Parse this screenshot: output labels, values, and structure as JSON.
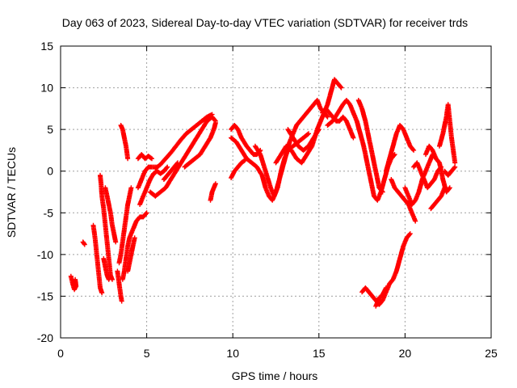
{
  "chart_data": {
    "type": "scatter",
    "title": "Day 063 of 2023, Sidereal Day-to-day VTEC variation (SDTVAR) for receiver trds",
    "xlabel": "GPS time / hours",
    "ylabel": "SDTVAR / TECUs",
    "xlim": [
      0,
      25
    ],
    "ylim": [
      -20,
      15
    ],
    "x_ticks": [
      0,
      5,
      10,
      15,
      20,
      25
    ],
    "y_ticks": [
      -20,
      -15,
      -10,
      -5,
      0,
      5,
      10,
      15
    ],
    "x_tick_labels": [
      "0",
      "5",
      "10",
      "15",
      "20",
      "25"
    ],
    "y_tick_labels": [
      "-20",
      "-15",
      "-10",
      "-5",
      "0",
      "5",
      "10",
      "15"
    ],
    "grid": true,
    "marker": "plus",
    "series_color": "#ff0000",
    "segments": [
      [
        [
          0.6,
          -12.6
        ],
        [
          0.7,
          -13.5
        ],
        [
          0.8,
          -14.2
        ],
        [
          0.9,
          -13.8
        ],
        [
          0.85,
          -13.0
        ]
      ],
      [
        [
          1.3,
          -8.5
        ],
        [
          1.4,
          -8.8
        ]
      ],
      [
        [
          1.9,
          -6.5
        ],
        [
          2.0,
          -8.0
        ],
        [
          2.1,
          -10.0
        ],
        [
          2.2,
          -12.0
        ],
        [
          2.3,
          -14.0
        ],
        [
          2.4,
          -14.6
        ]
      ],
      [
        [
          2.3,
          -0.5
        ],
        [
          2.35,
          -1.5
        ],
        [
          2.4,
          -3.0
        ],
        [
          2.5,
          -4.5
        ],
        [
          2.6,
          -6.5
        ],
        [
          2.7,
          -8.5
        ],
        [
          2.8,
          -10.5
        ],
        [
          2.9,
          -12.5
        ],
        [
          3.0,
          -13.0
        ]
      ],
      [
        [
          2.5,
          -10.5
        ],
        [
          2.6,
          -11.5
        ],
        [
          2.7,
          -12.5
        ],
        [
          2.8,
          -13.0
        ],
        [
          2.9,
          -12.5
        ]
      ],
      [
        [
          2.6,
          -2.0
        ],
        [
          2.7,
          -3.0
        ],
        [
          2.8,
          -4.0
        ],
        [
          2.9,
          -5.0
        ],
        [
          3.0,
          -6.5
        ],
        [
          3.1,
          -7.5
        ],
        [
          3.2,
          -8.5
        ]
      ],
      [
        [
          3.3,
          -12.0
        ],
        [
          3.4,
          -13.5
        ],
        [
          3.5,
          -15.0
        ],
        [
          3.55,
          -15.6
        ]
      ],
      [
        [
          3.4,
          -11.0
        ],
        [
          3.5,
          -10.0
        ],
        [
          3.6,
          -8.5
        ],
        [
          3.7,
          -7.0
        ],
        [
          3.8,
          -5.5
        ],
        [
          3.9,
          -4.0
        ],
        [
          4.0,
          -3.0
        ],
        [
          4.1,
          -2.0
        ]
      ],
      [
        [
          3.5,
          5.5
        ],
        [
          3.6,
          5.0
        ],
        [
          3.7,
          4.0
        ],
        [
          3.8,
          3.0
        ],
        [
          3.9,
          1.5
        ]
      ],
      [
        [
          3.6,
          -13.0
        ],
        [
          3.7,
          -12.0
        ],
        [
          3.8,
          -10.5
        ],
        [
          3.9,
          -9.0
        ],
        [
          4.0,
          -8.0
        ],
        [
          4.2,
          -7.0
        ],
        [
          4.4,
          -6.0
        ],
        [
          4.6,
          -5.5
        ],
        [
          4.8,
          -5.5
        ],
        [
          5.0,
          -5.0
        ]
      ],
      [
        [
          3.9,
          -12.0
        ],
        [
          4.0,
          -11.0
        ],
        [
          4.1,
          -10.0
        ],
        [
          4.2,
          -9.0
        ],
        [
          4.3,
          -8.0
        ]
      ],
      [
        [
          4.5,
          1.5
        ],
        [
          4.7,
          2.0
        ],
        [
          4.9,
          1.5
        ],
        [
          5.1,
          1.8
        ],
        [
          5.3,
          1.5
        ]
      ],
      [
        [
          4.6,
          -4.0
        ],
        [
          4.8,
          -3.0
        ],
        [
          5.0,
          -2.0
        ],
        [
          5.2,
          -1.0
        ],
        [
          5.4,
          -0.3
        ],
        [
          5.6,
          0.0
        ],
        [
          5.8,
          -0.3
        ],
        [
          6.0,
          0.0
        ],
        [
          6.2,
          0.5
        ]
      ],
      [
        [
          4.5,
          -2.0
        ],
        [
          4.7,
          -1.0
        ],
        [
          4.9,
          0.0
        ],
        [
          5.1,
          0.5
        ],
        [
          5.3,
          0.5
        ],
        [
          5.6,
          0.5
        ]
      ],
      [
        [
          5.2,
          -2.5
        ],
        [
          5.5,
          -3.0
        ],
        [
          5.8,
          -2.5
        ],
        [
          6.1,
          -2.0
        ],
        [
          6.4,
          -1.0
        ],
        [
          6.7,
          0.0
        ],
        [
          7.0,
          1.0
        ],
        [
          7.3,
          2.0
        ],
        [
          7.6,
          3.0
        ],
        [
          7.9,
          4.0
        ],
        [
          8.2,
          5.0
        ],
        [
          8.5,
          6.0
        ],
        [
          8.8,
          6.5
        ],
        [
          9.0,
          6.0
        ]
      ],
      [
        [
          5.5,
          0.3
        ],
        [
          5.8,
          0.8
        ],
        [
          6.1,
          1.5
        ],
        [
          6.4,
          2.2
        ],
        [
          6.7,
          3.0
        ],
        [
          7.0,
          3.8
        ],
        [
          7.3,
          4.5
        ],
        [
          7.6,
          5.0
        ],
        [
          7.9,
          5.5
        ],
        [
          8.2,
          6.0
        ],
        [
          8.5,
          6.5
        ],
        [
          8.8,
          6.8
        ]
      ],
      [
        [
          6.0,
          -1.0
        ],
        [
          6.2,
          -0.5
        ],
        [
          6.4,
          0.0
        ],
        [
          6.6,
          0.5
        ],
        [
          6.8,
          1.0
        ]
      ],
      [
        [
          7.2,
          0.5
        ],
        [
          7.5,
          1.0
        ],
        [
          7.8,
          1.5
        ],
        [
          8.1,
          2.0
        ],
        [
          8.4,
          3.0
        ],
        [
          8.7,
          4.0
        ],
        [
          8.9,
          5.0
        ],
        [
          9.0,
          5.8
        ]
      ],
      [
        [
          8.7,
          -3.5
        ],
        [
          8.8,
          -2.5
        ],
        [
          8.9,
          -2.0
        ],
        [
          9.0,
          -1.5
        ]
      ],
      [
        [
          9.9,
          -0.8
        ],
        [
          10.1,
          0.0
        ],
        [
          10.3,
          0.5
        ],
        [
          10.5,
          1.0
        ],
        [
          10.7,
          1.3
        ]
      ],
      [
        [
          9.9,
          5.0
        ],
        [
          10.1,
          5.5
        ],
        [
          10.3,
          5.0
        ],
        [
          10.5,
          4.0
        ],
        [
          10.8,
          3.0
        ],
        [
          11.0,
          2.5
        ],
        [
          11.2,
          2.0
        ],
        [
          11.4,
          2.0
        ],
        [
          11.6,
          2.5
        ]
      ],
      [
        [
          9.9,
          4.0
        ],
        [
          10.2,
          3.5
        ],
        [
          10.5,
          2.5
        ],
        [
          10.8,
          1.5
        ],
        [
          11.1,
          1.0
        ],
        [
          11.4,
          0.5
        ],
        [
          11.7,
          -0.5
        ],
        [
          11.9,
          -2.0
        ],
        [
          12.1,
          -3.0
        ],
        [
          12.3,
          -3.5
        ],
        [
          12.5,
          -2.5
        ],
        [
          12.7,
          -1.0
        ],
        [
          12.9,
          0.5
        ],
        [
          13.1,
          2.0
        ],
        [
          13.3,
          3.5
        ],
        [
          13.5,
          4.5
        ],
        [
          13.7,
          5.5
        ],
        [
          13.9,
          6.0
        ],
        [
          14.1,
          6.5
        ],
        [
          14.3,
          7.0
        ],
        [
          14.5,
          7.5
        ],
        [
          14.7,
          8.0
        ],
        [
          14.9,
          8.5
        ],
        [
          15.1,
          7.5
        ],
        [
          15.3,
          7.0
        ],
        [
          15.5,
          6.5
        ]
      ],
      [
        [
          11.3,
          3.0
        ],
        [
          11.6,
          2.0
        ],
        [
          11.9,
          0.0
        ],
        [
          12.2,
          -2.0
        ],
        [
          12.4,
          -3.0
        ],
        [
          12.6,
          -2.0
        ],
        [
          12.8,
          0.0
        ],
        [
          13.0,
          1.5
        ],
        [
          13.2,
          2.5
        ],
        [
          13.5,
          3.0
        ],
        [
          13.8,
          3.5
        ],
        [
          14.1,
          4.0
        ],
        [
          14.4,
          4.5
        ]
      ],
      [
        [
          12.5,
          1.0
        ],
        [
          12.8,
          2.0
        ],
        [
          13.1,
          3.0
        ],
        [
          13.4,
          2.5
        ],
        [
          13.7,
          1.5
        ],
        [
          14.0,
          1.0
        ],
        [
          14.3,
          2.0
        ],
        [
          14.6,
          3.0
        ],
        [
          14.9,
          5.0
        ],
        [
          15.2,
          6.5
        ],
        [
          15.5,
          8.0
        ],
        [
          15.7,
          9.5
        ],
        [
          15.9,
          11.0
        ],
        [
          16.1,
          10.5
        ],
        [
          16.3,
          10.0
        ]
      ],
      [
        [
          13.2,
          5.0
        ],
        [
          13.5,
          4.0
        ],
        [
          13.8,
          3.0
        ],
        [
          14.1,
          2.5
        ],
        [
          14.4,
          3.0
        ],
        [
          14.7,
          4.0
        ],
        [
          15.0,
          5.0
        ]
      ],
      [
        [
          15.2,
          7.0
        ],
        [
          15.4,
          7.5
        ],
        [
          15.6,
          7.0
        ],
        [
          15.8,
          6.5
        ],
        [
          16.0,
          6.0
        ],
        [
          16.2,
          6.0
        ],
        [
          16.4,
          6.5
        ],
        [
          16.6,
          6.0
        ],
        [
          16.8,
          5.0
        ],
        [
          17.0,
          4.0
        ]
      ],
      [
        [
          15.5,
          5.5
        ],
        [
          15.8,
          6.0
        ],
        [
          16.1,
          7.0
        ],
        [
          16.4,
          8.0
        ],
        [
          16.6,
          8.5
        ],
        [
          16.8,
          8.0
        ],
        [
          17.0,
          7.0
        ],
        [
          17.2,
          6.0
        ],
        [
          17.4,
          4.5
        ],
        [
          17.6,
          3.0
        ],
        [
          17.8,
          1.0
        ],
        [
          18.0,
          -1.0
        ],
        [
          18.2,
          -3.0
        ],
        [
          18.4,
          -3.5
        ],
        [
          18.6,
          -2.5
        ],
        [
          18.8,
          -1.0
        ],
        [
          19.0,
          0.5
        ],
        [
          19.2,
          1.5
        ],
        [
          19.4,
          2.0
        ]
      ],
      [
        [
          17.3,
          8.5
        ],
        [
          17.5,
          7.5
        ],
        [
          17.7,
          6.0
        ],
        [
          17.9,
          4.0
        ],
        [
          18.1,
          2.0
        ],
        [
          18.3,
          0.0
        ],
        [
          18.5,
          -2.0
        ],
        [
          18.7,
          -2.5
        ]
      ],
      [
        [
          17.5,
          -14.5
        ],
        [
          17.7,
          -14.0
        ],
        [
          17.9,
          -14.5
        ],
        [
          18.1,
          -15.0
        ],
        [
          18.3,
          -15.5
        ],
        [
          18.5,
          -16.0
        ],
        [
          18.7,
          -15.5
        ],
        [
          18.9,
          -14.5
        ],
        [
          19.1,
          -13.5
        ],
        [
          19.3,
          -13.0
        ],
        [
          19.5,
          -12.0
        ],
        [
          19.7,
          -10.5
        ],
        [
          19.9,
          -9.0
        ],
        [
          20.1,
          -8.0
        ],
        [
          20.3,
          -7.5
        ]
      ],
      [
        [
          18.3,
          -16.2
        ],
        [
          18.5,
          -15.2
        ],
        [
          18.7,
          -14.8
        ],
        [
          18.9,
          -14.0
        ]
      ],
      [
        [
          18.9,
          0.0
        ],
        [
          19.1,
          1.5
        ],
        [
          19.3,
          3.0
        ],
        [
          19.5,
          4.5
        ],
        [
          19.7,
          5.5
        ],
        [
          19.9,
          5.0
        ],
        [
          20.1,
          4.0
        ],
        [
          20.3,
          3.0
        ],
        [
          20.5,
          2.5
        ]
      ],
      [
        [
          19.2,
          -1.0
        ],
        [
          19.4,
          -2.0
        ],
        [
          19.6,
          -2.5
        ],
        [
          19.8,
          -3.0
        ],
        [
          20.0,
          -3.5
        ],
        [
          20.2,
          -4.0
        ],
        [
          20.4,
          -5.0
        ],
        [
          20.6,
          -6.0
        ]
      ],
      [
        [
          20.0,
          -2.0
        ],
        [
          20.2,
          -3.0
        ],
        [
          20.4,
          -4.0
        ],
        [
          20.6,
          -3.5
        ],
        [
          20.8,
          -2.5
        ],
        [
          21.0,
          -1.0
        ],
        [
          21.2,
          0.0
        ],
        [
          21.4,
          1.0
        ],
        [
          21.6,
          2.0
        ]
      ],
      [
        [
          20.5,
          0.5
        ],
        [
          20.7,
          1.0
        ],
        [
          20.9,
          0.0
        ],
        [
          21.1,
          -1.0
        ],
        [
          21.3,
          -2.0
        ],
        [
          21.5,
          -1.5
        ],
        [
          21.7,
          -1.0
        ],
        [
          21.9,
          0.0
        ],
        [
          22.1,
          0.5
        ]
      ],
      [
        [
          21.2,
          2.0
        ],
        [
          21.4,
          3.0
        ],
        [
          21.6,
          2.5
        ],
        [
          21.8,
          1.5
        ],
        [
          22.0,
          1.0
        ],
        [
          22.2,
          -1.0
        ],
        [
          22.4,
          -2.5
        ],
        [
          22.6,
          -2.0
        ]
      ],
      [
        [
          21.5,
          -4.5
        ],
        [
          21.7,
          -4.0
        ],
        [
          21.9,
          -3.5
        ],
        [
          22.1,
          -3.0
        ],
        [
          22.3,
          -2.0
        ]
      ],
      [
        [
          22.0,
          3.0
        ],
        [
          22.2,
          4.5
        ],
        [
          22.4,
          6.5
        ],
        [
          22.5,
          8.0
        ],
        [
          22.6,
          6.0
        ],
        [
          22.7,
          4.0
        ],
        [
          22.8,
          2.5
        ],
        [
          22.9,
          1.0
        ]
      ],
      [
        [
          22.3,
          0.0
        ],
        [
          22.5,
          -0.5
        ],
        [
          22.7,
          0.0
        ],
        [
          22.9,
          0.5
        ]
      ]
    ]
  }
}
